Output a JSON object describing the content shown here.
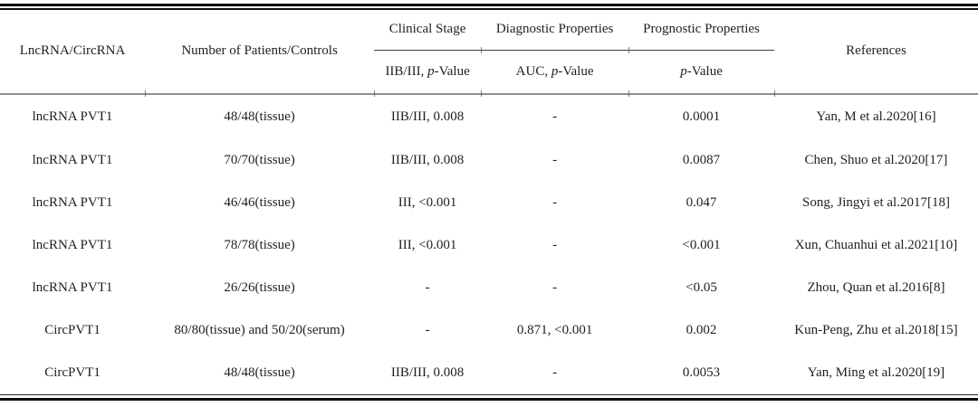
{
  "table": {
    "header": {
      "col1": "LncRNA/CircRNA",
      "col2": "Number of Patients/Controls",
      "clinical": {
        "label": "Clinical Stage",
        "sub_before": "IIB/III, ",
        "sub_italic": "p",
        "sub_after": "-Value"
      },
      "diagnostic": {
        "label": "Diagnostic Properties",
        "sub_before": "AUC, ",
        "sub_italic": "p",
        "sub_after": "-Value"
      },
      "prognostic": {
        "label": "Prognostic Properties",
        "sub_before": "",
        "sub_italic": "p",
        "sub_after": "-Value"
      },
      "col6": "References"
    },
    "rows": [
      [
        "lncRNA PVT1",
        "48/48(tissue)",
        "IIB/III, 0.008",
        "-",
        "0.0001",
        "Yan, M et al.2020[16]"
      ],
      [
        "lncRNA PVT1",
        "70/70(tissue)",
        "IIB/III, 0.008",
        "-",
        "0.0087",
        "Chen, Shuo et al.2020[17]"
      ],
      [
        "lncRNA PVT1",
        "46/46(tissue)",
        "III, <0.001",
        "-",
        "0.047",
        "Song, Jingyi et al.2017[18]"
      ],
      [
        "lncRNA PVT1",
        "78/78(tissue)",
        "III, <0.001",
        "-",
        "<0.001",
        "Xun, Chuanhui et al.2021[10]"
      ],
      [
        "lncRNA PVT1",
        "26/26(tissue)",
        "-",
        "-",
        "<0.05",
        "Zhou, Quan et al.2016[8]"
      ],
      [
        "CircPVT1",
        "80/80(tissue) and 50/20(serum)",
        "-",
        "0.871, <0.001",
        "0.002",
        "Kun-Peng, Zhu et al.2018[15]"
      ],
      [
        "CircPVT1",
        "48/48(tissue)",
        "IIB/III, 0.008",
        "-",
        "0.0053",
        "Yan, Ming et al.2020[19]"
      ]
    ]
  }
}
